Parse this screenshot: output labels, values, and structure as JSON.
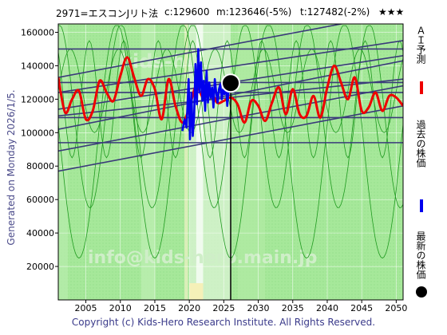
{
  "header": {
    "code": "2971=エスコンJリト法",
    "current": "c:129600",
    "model": "m:123646(-5%)",
    "target": "t:127482(-2%)",
    "rating": "★★★"
  },
  "sidebar": {
    "generated": "Generated on Monday 2026/1/5."
  },
  "footer": {
    "copyright": "Copyright (c) Kids-Hero Research Institute. All Rights Reserved."
  },
  "watermark": {
    "site": "kids-hero",
    "email": "info@kids-hero.main.jp"
  },
  "colors": {
    "background": "#a6e89a",
    "prediction": "#ee0000",
    "history": "#0000ee",
    "channel": "#3a3a7a",
    "thin": "#1f9a1f",
    "axis_text": "#000000"
  },
  "legend": [
    {
      "label": "ＡＩ予測",
      "color": "#ee0000",
      "marker": "line"
    },
    {
      "label": "過去の株価",
      "color": "#0000ee",
      "marker": "line"
    },
    {
      "label": "最新の株価",
      "color": "#000000",
      "marker": "dot"
    }
  ],
  "chart_data": {
    "type": "line",
    "title": "2971=エスコンJリト法",
    "xlabel": "",
    "ylabel": "",
    "xlim": [
      2001,
      2051
    ],
    "ylim": [
      0,
      165000
    ],
    "x_ticks": [
      2005,
      2010,
      2015,
      2020,
      2025,
      2030,
      2035,
      2040,
      2045,
      2050
    ],
    "y_ticks": [
      20000,
      40000,
      60000,
      80000,
      100000,
      120000,
      140000,
      160000
    ],
    "grid": true,
    "legend_position": "right",
    "current_marker": {
      "x": 2026.0,
      "y": 129600
    },
    "current_vline": 2026.0,
    "horizontal_levels": [
      150000,
      130000,
      124000,
      109000,
      94000
    ],
    "channel_lines": [
      {
        "x": [
          2001,
          2051
        ],
        "y": [
          133000,
          172000
        ]
      },
      {
        "x": [
          2001,
          2051
        ],
        "y": [
          124000,
          155000
        ]
      },
      {
        "x": [
          2001,
          2051
        ],
        "y": [
          114000,
          146000
        ]
      },
      {
        "x": [
          2001,
          2051
        ],
        "y": [
          110000,
          132000
        ]
      },
      {
        "x": [
          2001,
          2051
        ],
        "y": [
          102000,
          143000
        ]
      },
      {
        "x": [
          2001,
          2051
        ],
        "y": [
          89000,
          128000
        ]
      },
      {
        "x": [
          2001,
          2051
        ],
        "y": [
          77000,
          116000
        ]
      }
    ],
    "series": [
      {
        "name": "ＡＩ予測",
        "color": "#ee0000",
        "x": [
          2001,
          2002,
          2003,
          2004,
          2005,
          2006,
          2007,
          2008,
          2009,
          2010,
          2011,
          2012,
          2013,
          2014,
          2015,
          2016,
          2017,
          2018,
          2019,
          2020,
          2021,
          2022,
          2023,
          2024,
          2025,
          2026,
          2027,
          2028,
          2029,
          2030,
          2031,
          2032,
          2033,
          2034,
          2035,
          2036,
          2037,
          2038,
          2039,
          2040,
          2041,
          2042,
          2043,
          2044,
          2045,
          2046,
          2047,
          2048,
          2049,
          2050,
          2051
        ],
        "y": [
          133000,
          112000,
          120000,
          125000,
          108000,
          113000,
          131000,
          124000,
          119000,
          134000,
          145000,
          133000,
          122000,
          132000,
          126000,
          108000,
          132000,
          116000,
          106000,
          115000,
          128000,
          121000,
          126000,
          118000,
          119000,
          121000,
          117000,
          106000,
          119000,
          116000,
          107000,
          118000,
          127000,
          111000,
          126000,
          111000,
          110000,
          122000,
          109000,
          127000,
          140000,
          130000,
          120000,
          133000,
          113000,
          115000,
          124000,
          113000,
          122000,
          121000,
          116000
        ]
      },
      {
        "name": "過去の株価",
        "color": "#0000ee",
        "x": [
          2019.0,
          2019.3,
          2019.6,
          2019.9,
          2020.1,
          2020.3,
          2020.5,
          2020.7,
          2020.9,
          2021.1,
          2021.3,
          2021.5,
          2021.7,
          2021.9,
          2022.1,
          2022.3,
          2022.5,
          2022.7,
          2022.9,
          2023.1,
          2023.3,
          2023.5,
          2023.7,
          2023.9,
          2024.1,
          2024.3,
          2024.5,
          2024.7,
          2024.9,
          2025.1,
          2025.3,
          2025.5,
          2025.7,
          2026.0
        ],
        "y": [
          101000,
          108000,
          103000,
          132000,
          96000,
          124000,
          98000,
          110000,
          141000,
          117000,
          150000,
          124000,
          142000,
          119000,
          131000,
          113000,
          137000,
          118000,
          130000,
          121000,
          127000,
          115000,
          132000,
          124000,
          118000,
          126000,
          129000,
          120000,
          126000,
          123000,
          131000,
          116000,
          126000,
          129600
        ]
      }
    ]
  }
}
